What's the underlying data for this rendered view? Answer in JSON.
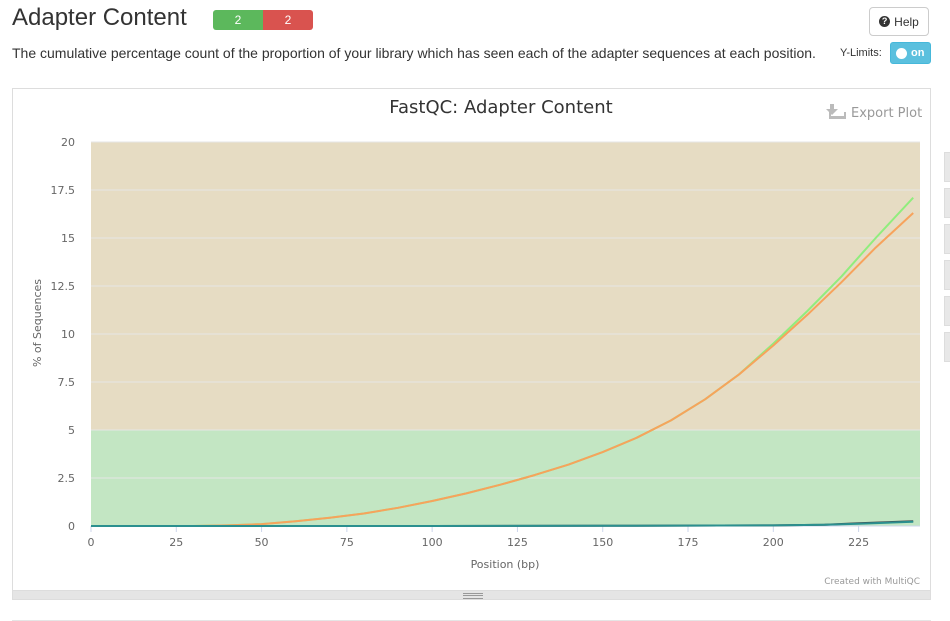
{
  "header": {
    "title": "Adapter Content",
    "badges": [
      {
        "value": "2",
        "status": "pass"
      },
      {
        "value": "2",
        "status": "fail"
      }
    ],
    "help_label": "Help",
    "help_icon": "question-circle-icon"
  },
  "description": "The cumulative percentage count of the proportion of your library which has seen each of the adapter sequences at each position.",
  "ylimits": {
    "label": "Y-Limits:",
    "state": "on"
  },
  "plot": {
    "export_label": "Export Plot",
    "export_icon": "download-icon",
    "credit": "Created with MultiQC"
  },
  "colors": {
    "pass": "#5cb85c",
    "fail": "#d9534f",
    "toggle": "#5bc0de",
    "band_green": "#c3e6c3",
    "band_orange": "#e6dcc3"
  },
  "chart_data": {
    "type": "line",
    "title": "FastQC: Adapter Content",
    "xlabel": "Position (bp)",
    "ylabel": "% of Sequences",
    "xlim": [
      0,
      243
    ],
    "ylim": [
      0,
      20
    ],
    "xticks": [
      0,
      25,
      50,
      75,
      100,
      125,
      150,
      175,
      200,
      225
    ],
    "yticks": [
      0,
      2.5,
      5,
      7.5,
      10,
      12.5,
      15,
      17.5,
      20
    ],
    "bands": [
      {
        "from": 0,
        "to": 5,
        "color": "#c3e6c3"
      },
      {
        "from": 5,
        "to": 20,
        "color": "#e6dcc3"
      }
    ],
    "series": [
      {
        "color": "#90ed7d",
        "x": [
          0,
          10,
          20,
          30,
          40,
          50,
          60,
          70,
          80,
          90,
          100,
          110,
          120,
          130,
          140,
          150,
          160,
          170,
          180,
          190,
          200,
          210,
          220,
          230,
          241
        ],
        "y": [
          0,
          0,
          0,
          0,
          0.03,
          0.1,
          0.25,
          0.43,
          0.65,
          0.95,
          1.3,
          1.7,
          2.15,
          2.65,
          3.2,
          3.85,
          4.6,
          5.5,
          6.6,
          7.9,
          9.5,
          11.2,
          13.0,
          15.0,
          17.1
        ]
      },
      {
        "color": "#f7a35c",
        "x": [
          0,
          10,
          20,
          30,
          40,
          50,
          60,
          70,
          80,
          90,
          100,
          110,
          120,
          130,
          140,
          150,
          160,
          170,
          180,
          190,
          200,
          210,
          220,
          230,
          241
        ],
        "y": [
          0,
          0,
          0,
          0,
          0.03,
          0.1,
          0.25,
          0.43,
          0.65,
          0.95,
          1.3,
          1.7,
          2.15,
          2.65,
          3.2,
          3.85,
          4.6,
          5.5,
          6.6,
          7.9,
          9.4,
          11.0,
          12.7,
          14.5,
          16.3
        ]
      },
      {
        "color": "#434348",
        "x": [
          0,
          50,
          100,
          150,
          200,
          215,
          225,
          241
        ],
        "y": [
          0,
          0,
          0,
          0.01,
          0.03,
          0.07,
          0.14,
          0.25
        ]
      },
      {
        "color": "#2b908f",
        "x": [
          0,
          50,
          100,
          150,
          200,
          215,
          225,
          241
        ],
        "y": [
          0,
          0,
          0,
          0.01,
          0.03,
          0.06,
          0.12,
          0.22
        ]
      }
    ]
  }
}
